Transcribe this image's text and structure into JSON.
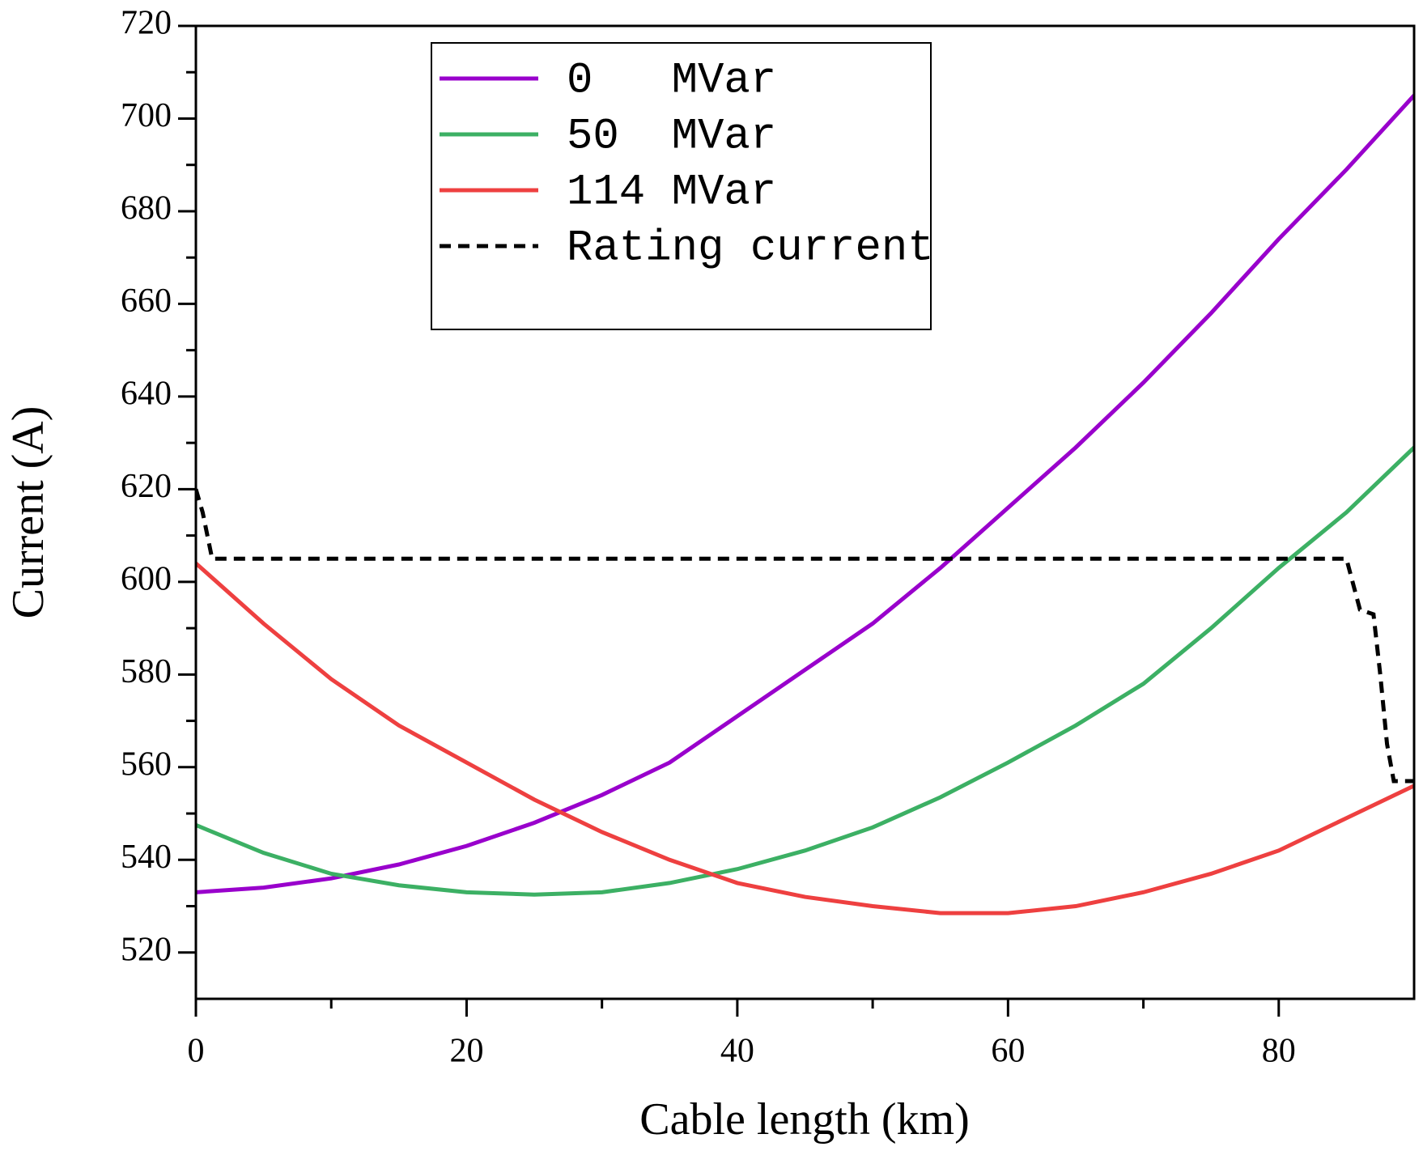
{
  "chart_data": {
    "type": "line",
    "xlabel": "Cable length (km)",
    "ylabel": "Current (A)",
    "x": [
      0,
      5,
      10,
      15,
      20,
      25,
      30,
      35,
      40,
      45,
      50,
      55,
      60,
      65,
      70,
      75,
      80,
      85,
      90
    ],
    "series": [
      {
        "name": "0   MVar",
        "color": "#9900cc",
        "values": [
          533,
          534,
          536,
          539,
          543,
          548,
          554,
          561,
          571,
          581,
          591,
          603,
          616,
          629,
          643,
          658,
          674,
          689,
          705
        ]
      },
      {
        "name": "50  MVar",
        "color": "#3cb064",
        "values": [
          547.5,
          541.5,
          537,
          534.5,
          533,
          532.5,
          533,
          535,
          538,
          542,
          547,
          553.5,
          561,
          569,
          578,
          590,
          603,
          615,
          629
        ]
      },
      {
        "name": "114 MVar",
        "color": "#ee4040",
        "values": [
          604,
          591,
          579,
          569,
          561,
          553,
          546,
          540,
          535,
          532,
          530,
          528.5,
          528.5,
          530,
          533,
          537,
          542,
          549,
          556
        ]
      },
      {
        "name": "Rating current",
        "color": "#000000",
        "dashed": true,
        "x": [
          0,
          0.5,
          1.2,
          85,
          86,
          87,
          87.5,
          88,
          88.5,
          90
        ],
        "values": [
          620,
          615,
          605,
          605,
          594,
          593,
          580,
          565,
          557,
          557
        ]
      }
    ],
    "xlim": [
      0,
      90
    ],
    "xticks": [
      0,
      20,
      40,
      60,
      80
    ],
    "ylim": [
      510,
      720
    ],
    "yticks": [
      520,
      540,
      560,
      580,
      600,
      620,
      640,
      660,
      680,
      700,
      720
    ],
    "grid": false,
    "legend": "top"
  }
}
